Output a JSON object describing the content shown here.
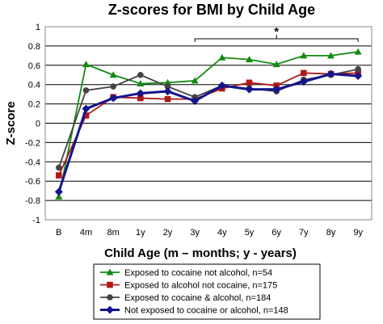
{
  "chart_data": {
    "type": "line",
    "title": "Z-scores for BMI by Child Age",
    "xlabel": "Child Age (m – months; y - years)",
    "ylabel": "Z-score",
    "categories": [
      "B",
      "4m",
      "8m",
      "1y",
      "2y",
      "3y",
      "4y",
      "5y",
      "6y",
      "7y",
      "8y",
      "9y"
    ],
    "ylim": [
      -1,
      1
    ],
    "yticks": [
      "-1",
      "-0.8",
      "-0.6",
      "-0.4",
      "-0.2",
      "0",
      "0.2",
      "0.4",
      "0.6",
      "0.8",
      "1"
    ],
    "grid": "horizontal",
    "legend_position": "bottom",
    "annotation": {
      "text": "*",
      "from": "3y",
      "to": "9y"
    },
    "series": [
      {
        "name": "Exposed to cocaine not alcohol, n=54",
        "color": "#138a13",
        "marker": "triangle",
        "values": [
          -0.76,
          0.61,
          0.5,
          0.41,
          0.42,
          0.44,
          0.68,
          0.66,
          0.61,
          0.7,
          0.7,
          0.74
        ]
      },
      {
        "name": "Exposed to alcohol not cocaine, n=175",
        "color": "#b01818",
        "marker": "square",
        "values": [
          -0.54,
          0.08,
          0.27,
          0.26,
          0.25,
          0.25,
          0.36,
          0.42,
          0.39,
          0.52,
          0.51,
          0.52
        ]
      },
      {
        "name": "Exposed to cocaine & alcohol, n=184",
        "color": "#444444",
        "marker": "circle",
        "values": [
          -0.46,
          0.34,
          0.38,
          0.5,
          0.38,
          0.27,
          0.39,
          0.36,
          0.33,
          0.45,
          0.5,
          0.56
        ]
      },
      {
        "name": "Not exposed to cocaine or alcohol, n=148",
        "color": "#14148f",
        "marker": "diamond",
        "values": [
          -0.71,
          0.15,
          0.26,
          0.31,
          0.33,
          0.23,
          0.39,
          0.35,
          0.35,
          0.43,
          0.51,
          0.49
        ]
      }
    ]
  }
}
